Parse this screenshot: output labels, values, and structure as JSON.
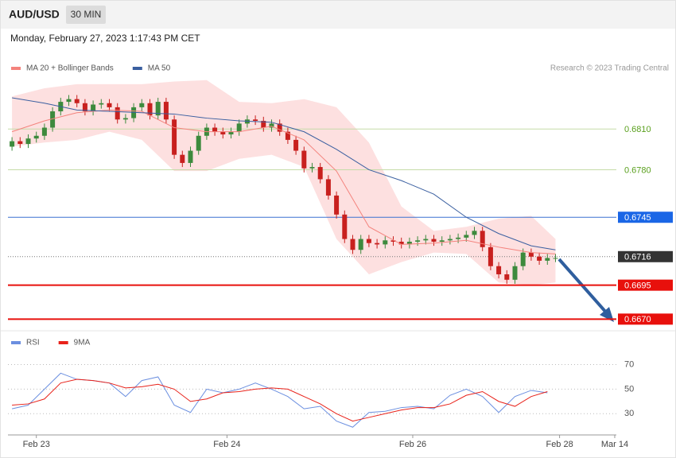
{
  "header": {
    "symbol": "AUD/USD",
    "interval": "30 MIN",
    "timestamp": "Monday, February 27, 2023 1:17:43 PM CET",
    "credit": "Research © 2023 Trading Central"
  },
  "chart_data": [
    {
      "type": "candlestick",
      "xlim": [
        -0.5,
        74.5
      ],
      "ylim": [
        0.6662,
        0.6864
      ],
      "up_color": "#3d8a3d",
      "down_color": "#c8201e",
      "x": [
        0,
        1,
        2,
        3,
        4,
        5,
        6,
        7,
        8,
        9,
        10,
        11,
        12,
        13,
        14,
        15,
        16,
        17,
        18,
        19,
        20,
        21,
        22,
        23,
        24,
        25,
        26,
        27,
        28,
        29,
        30,
        31,
        32,
        33,
        34,
        35,
        36,
        37,
        38,
        39,
        40,
        41,
        42,
        43,
        44,
        45,
        46,
        47,
        48,
        49,
        50,
        51,
        52,
        53,
        54,
        55,
        56,
        57,
        58,
        59,
        60,
        61,
        62,
        63,
        64,
        65,
        66,
        67
      ],
      "open": [
        0.6797,
        0.6801,
        0.6799,
        0.6803,
        0.6805,
        0.6811,
        0.6823,
        0.683,
        0.6832,
        0.6829,
        0.6823,
        0.6828,
        0.6829,
        0.6826,
        0.6817,
        0.6818,
        0.6826,
        0.6829,
        0.682,
        0.683,
        0.6817,
        0.6791,
        0.6785,
        0.6794,
        0.6805,
        0.6811,
        0.6808,
        0.6806,
        0.6808,
        0.6814,
        0.6817,
        0.6816,
        0.6811,
        0.6814,
        0.6808,
        0.6802,
        0.6794,
        0.6781,
        0.6782,
        0.6773,
        0.6761,
        0.6747,
        0.6729,
        0.6721,
        0.6729,
        0.6726,
        0.6725,
        0.6728,
        0.6727,
        0.6725,
        0.6727,
        0.6728,
        0.6729,
        0.6727,
        0.6728,
        0.6729,
        0.673,
        0.6732,
        0.6735,
        0.6723,
        0.6709,
        0.6703,
        0.6699,
        0.6709,
        0.6719,
        0.6716,
        0.6713,
        0.6715
      ],
      "high": [
        0.6804,
        0.6804,
        0.6806,
        0.6808,
        0.6814,
        0.6826,
        0.6833,
        0.6835,
        0.6835,
        0.6832,
        0.6831,
        0.6832,
        0.6832,
        0.6829,
        0.6821,
        0.6829,
        0.6832,
        0.6832,
        0.6833,
        0.6833,
        0.682,
        0.6794,
        0.6797,
        0.6808,
        0.6814,
        0.6814,
        0.6811,
        0.6811,
        0.6817,
        0.682,
        0.682,
        0.6819,
        0.6817,
        0.6817,
        0.6811,
        0.6805,
        0.6797,
        0.6785,
        0.6785,
        0.6776,
        0.6764,
        0.675,
        0.6732,
        0.6732,
        0.6732,
        0.6729,
        0.6731,
        0.6731,
        0.673,
        0.673,
        0.6731,
        0.6732,
        0.6732,
        0.6731,
        0.6732,
        0.6733,
        0.6735,
        0.6738,
        0.6738,
        0.6726,
        0.6712,
        0.6706,
        0.6712,
        0.6722,
        0.6722,
        0.6719,
        0.6718,
        0.6718
      ],
      "low": [
        0.6794,
        0.6796,
        0.6796,
        0.68,
        0.6802,
        0.6808,
        0.682,
        0.6827,
        0.6826,
        0.682,
        0.682,
        0.6825,
        0.6823,
        0.6814,
        0.6814,
        0.6815,
        0.6823,
        0.6817,
        0.6817,
        0.6814,
        0.6788,
        0.6782,
        0.6782,
        0.6791,
        0.6802,
        0.6805,
        0.6803,
        0.6803,
        0.6805,
        0.6811,
        0.6813,
        0.6808,
        0.6808,
        0.6805,
        0.6799,
        0.6791,
        0.6778,
        0.6778,
        0.677,
        0.6758,
        0.6744,
        0.6726,
        0.6718,
        0.6718,
        0.6723,
        0.6722,
        0.6722,
        0.6724,
        0.6722,
        0.6722,
        0.6724,
        0.6725,
        0.6724,
        0.6724,
        0.6725,
        0.6726,
        0.6727,
        0.6729,
        0.672,
        0.6706,
        0.67,
        0.6696,
        0.6696,
        0.6706,
        0.6713,
        0.671,
        0.671,
        0.6712
      ],
      "close": [
        0.6801,
        0.6799,
        0.6803,
        0.6805,
        0.6811,
        0.6823,
        0.683,
        0.6832,
        0.6829,
        0.6823,
        0.6828,
        0.6829,
        0.6826,
        0.6817,
        0.6818,
        0.6826,
        0.6829,
        0.682,
        0.683,
        0.6817,
        0.6791,
        0.6785,
        0.6794,
        0.6805,
        0.6811,
        0.6808,
        0.6806,
        0.6808,
        0.6814,
        0.6817,
        0.6816,
        0.6811,
        0.6814,
        0.6808,
        0.6802,
        0.6794,
        0.6781,
        0.6782,
        0.6773,
        0.6761,
        0.6747,
        0.6729,
        0.6721,
        0.6729,
        0.6726,
        0.6725,
        0.6728,
        0.6727,
        0.6725,
        0.6727,
        0.6728,
        0.6729,
        0.6727,
        0.6728,
        0.6729,
        0.673,
        0.6732,
        0.6735,
        0.6723,
        0.6709,
        0.6703,
        0.6699,
        0.6709,
        0.6719,
        0.6716,
        0.6713,
        0.6715,
        0.6715
      ],
      "overlays": {
        "x": [
          0,
          4,
          8,
          12,
          16,
          20,
          24,
          28,
          32,
          36,
          40,
          44,
          48,
          52,
          56,
          60,
          64,
          67
        ],
        "series": [
          {
            "name": "MA 20 + Bollinger Bands",
            "color": "#f4837d",
            "band_color": "#fde0e0",
            "values": [
              0.6808,
              0.6816,
              0.6822,
              0.6824,
              0.6823,
              0.6811,
              0.6808,
              0.6808,
              0.6812,
              0.6802,
              0.6779,
              0.6738,
              0.6725,
              0.6726,
              0.6728,
              0.6723,
              0.6719,
              0.6718
            ],
            "upper": [
              0.6834,
              0.684,
              0.6843,
              0.6843,
              0.6843,
              0.6845,
              0.6846,
              0.683,
              0.6829,
              0.6832,
              0.6826,
              0.68,
              0.6753,
              0.6735,
              0.6738,
              0.6744,
              0.6746,
              0.6729
            ],
            "lower": [
              0.6797,
              0.68,
              0.6802,
              0.6808,
              0.6802,
              0.6779,
              0.6779,
              0.6788,
              0.6791,
              0.6782,
              0.6729,
              0.6703,
              0.6712,
              0.6719,
              0.6718,
              0.6697,
              0.6695,
              0.6697
            ]
          },
          {
            "name": "MA 50",
            "color": "#3a5fa0",
            "values": [
              0.6833,
              0.6829,
              0.6824,
              0.6823,
              0.6822,
              0.6821,
              0.6818,
              0.6816,
              0.6815,
              0.6808,
              0.6795,
              0.678,
              0.6772,
              0.6762,
              0.6745,
              0.6733,
              0.6724,
              0.6721
            ]
          }
        ]
      },
      "levels": [
        {
          "value": 0.681,
          "label": "0.6810",
          "color": "#5aa01e",
          "line_color": "#c5dba8",
          "box": false,
          "width": 1,
          "style": "solid"
        },
        {
          "value": 0.678,
          "label": "0.6780",
          "color": "#5aa01e",
          "line_color": "#c5dba8",
          "box": false,
          "width": 1,
          "style": "solid"
        },
        {
          "value": 0.6745,
          "label": "0.6745",
          "color": "#1a66e6",
          "line_color": "#3a70d0",
          "box": true,
          "width": 1,
          "style": "solid"
        },
        {
          "value": 0.6716,
          "label": "0.6716",
          "color": "#333333",
          "line_color": "#777777",
          "box": true,
          "width": 1,
          "style": "dotted"
        },
        {
          "value": 0.6695,
          "label": "0.6695",
          "color": "#e8100c",
          "line_color": "#e8100c",
          "box": true,
          "width": 2,
          "style": "solid"
        },
        {
          "value": 0.667,
          "label": "0.6670",
          "color": "#e8100c",
          "line_color": "#e8100c",
          "box": true,
          "width": 2,
          "style": "solid"
        }
      ]
    },
    {
      "type": "line",
      "xlim": [
        -0.5,
        74.5
      ],
      "ylim": [
        14,
        82
      ],
      "yticks": [
        30,
        50,
        70
      ],
      "grid": true,
      "xticks": [
        {
          "value": 3,
          "label": "Feb 23"
        },
        {
          "value": 26.5,
          "label": "Feb 24"
        },
        {
          "value": 49.4,
          "label": "Feb 26"
        },
        {
          "value": 67.5,
          "label": "Feb 28"
        },
        {
          "value": 74.3,
          "label": "Mar 14"
        }
      ],
      "x": [
        0,
        2,
        4,
        6,
        8,
        10,
        12,
        14,
        16,
        18,
        20,
        22,
        24,
        26,
        28,
        30,
        32,
        34,
        36,
        38,
        40,
        42,
        44,
        46,
        48,
        50,
        52,
        54,
        56,
        58,
        60,
        62,
        64,
        66
      ],
      "series": [
        {
          "name": "RSI",
          "color": "#6b8fe0",
          "values": [
            34,
            37,
            50,
            63,
            58,
            57,
            55,
            44,
            57,
            60,
            37,
            31,
            50,
            47,
            50,
            55,
            50,
            44,
            34,
            36,
            24,
            19,
            31,
            32,
            35,
            36,
            34,
            45,
            50,
            44,
            31,
            44,
            49,
            47
          ]
        },
        {
          "name": "9MA",
          "color": "#e8221a",
          "values": [
            37,
            38,
            42,
            55,
            58,
            57,
            55,
            51,
            52,
            54,
            50,
            40,
            42,
            47,
            48,
            50,
            51,
            50,
            44,
            38,
            30,
            24,
            27,
            30,
            33,
            35,
            35,
            38,
            45,
            48,
            40,
            36,
            44,
            48
          ]
        }
      ]
    }
  ]
}
